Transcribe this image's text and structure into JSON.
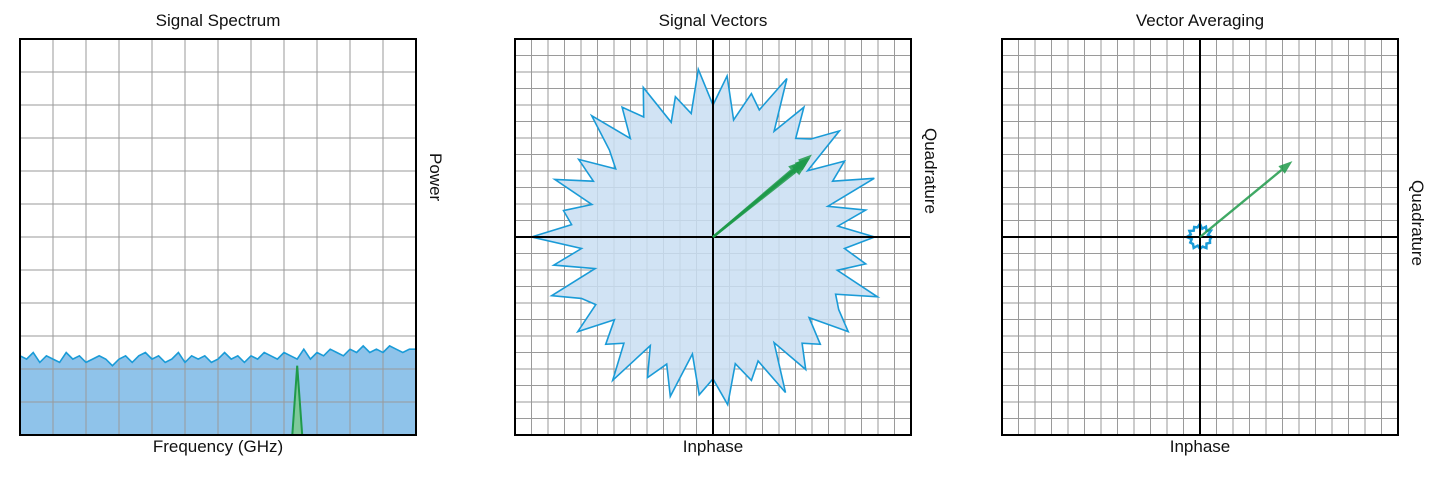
{
  "colors": {
    "grid": "#9a9a9a",
    "axis": "#000000",
    "signal_line": "#1a9bd7",
    "signal_fill": "#8fc3ea",
    "vector_fill": "#c9def2",
    "arrow": "#1f9a4a"
  },
  "chart_data": [
    {
      "type": "area",
      "title": "Signal Spectrum",
      "xlabel": "Frequency (GHz)",
      "ylabel": "Power",
      "grid": true,
      "xlim": [
        0,
        12
      ],
      "ylim": [
        0,
        12
      ],
      "series": [
        {
          "kind": "noise-floor",
          "x": [
            0,
            0.2,
            0.4,
            0.6,
            0.8,
            1,
            1.2,
            1.4,
            1.6,
            1.8,
            2,
            2.2,
            2.4,
            2.6,
            2.8,
            3,
            3.2,
            3.4,
            3.6,
            3.8,
            4,
            4.2,
            4.4,
            4.6,
            4.8,
            5,
            5.2,
            5.4,
            5.6,
            5.8,
            6,
            6.2,
            6.4,
            6.6,
            6.8,
            7,
            7.2,
            7.4,
            7.6,
            7.8,
            8,
            8.2,
            8.4,
            8.6,
            8.8,
            9,
            9.2,
            9.4,
            9.6,
            9.8,
            10,
            10.2,
            10.4,
            10.6,
            10.8,
            11,
            11.2,
            11.4,
            11.6,
            11.8,
            12
          ],
          "y": [
            2.4,
            2.3,
            2.5,
            2.2,
            2.4,
            2.3,
            2.2,
            2.5,
            2.3,
            2.4,
            2.2,
            2.3,
            2.4,
            2.3,
            2.1,
            2.3,
            2.4,
            2.2,
            2.4,
            2.5,
            2.3,
            2.4,
            2.2,
            2.3,
            2.5,
            2.2,
            2.4,
            2.3,
            2.4,
            2.2,
            2.3,
            2.5,
            2.3,
            2.4,
            2.2,
            2.4,
            2.3,
            2.5,
            2.4,
            2.3,
            2.5,
            2.4,
            2.3,
            2.6,
            2.3,
            2.5,
            2.4,
            2.6,
            2.5,
            2.4,
            2.6,
            2.5,
            2.7,
            2.5,
            2.6,
            2.5,
            2.7,
            2.6,
            2.5,
            2.6,
            2.6
          ]
        },
        {
          "kind": "signal-peak",
          "x": [
            8.25,
            8.4,
            8.55
          ],
          "y": [
            0,
            2.1,
            0
          ]
        }
      ]
    },
    {
      "type": "scatter",
      "title": "Signal Vectors",
      "xlabel": "Inphase",
      "ylabel": "Quadrature",
      "grid": true,
      "xlim": [
        -6,
        6
      ],
      "ylim": [
        -6,
        6
      ],
      "noise_radius": [
        4.9,
        3.8,
        4.7,
        3.6,
        5.2,
        4.0,
        4.6,
        3.5,
        5.0,
        4.2,
        3.9,
        4.8,
        3.7,
        5.3,
        4.1,
        4.5,
        3.6,
        4.9,
        4.0,
        5.1,
        3.8,
        4.4,
        3.7,
        5.0,
        4.2,
        4.8,
        3.9,
        5.2,
        4.1,
        3.6,
        4.7,
        4.0,
        5.1,
        3.8,
        4.6,
        4.3,
        5.5,
        4.0,
        4.9,
        3.7,
        5.2,
        4.4,
        4.1,
        5.0,
        3.9,
        4.6,
        4.2,
        5.3,
        3.8,
        4.7,
        4.1,
        5.0,
        3.6,
        4.8,
        4.3,
        5.1,
        3.9,
        4.5,
        4.0,
        5.2,
        3.7,
        4.9,
        4.2,
        4.6,
        3.8,
        5.0,
        4.4,
        4.1,
        5.3,
        3.9,
        4.7,
        4.0
      ],
      "vectors": [
        {
          "x": 2.9,
          "y": 2.4
        },
        {
          "x": 2.8,
          "y": 2.3
        },
        {
          "x": 3.0,
          "y": 2.5
        },
        {
          "x": 2.7,
          "y": 2.3
        },
        {
          "x": 2.95,
          "y": 2.4
        },
        {
          "x": 2.85,
          "y": 2.25
        }
      ]
    },
    {
      "type": "scatter",
      "title": "Vector Averaging",
      "xlabel": "Inphase",
      "ylabel": "Quadrature",
      "grid": true,
      "xlim": [
        -6,
        6
      ],
      "ylim": [
        -6,
        6
      ],
      "noise_radius": [
        0.35,
        0.25,
        0.38,
        0.28,
        0.36,
        0.26,
        0.4,
        0.3,
        0.35,
        0.27,
        0.37,
        0.29,
        0.4,
        0.26,
        0.34,
        0.3,
        0.38,
        0.27,
        0.36,
        0.3,
        0.39,
        0.28,
        0.35,
        0.31
      ],
      "vectors": [
        {
          "x": 2.8,
          "y": 2.3
        }
      ]
    }
  ]
}
